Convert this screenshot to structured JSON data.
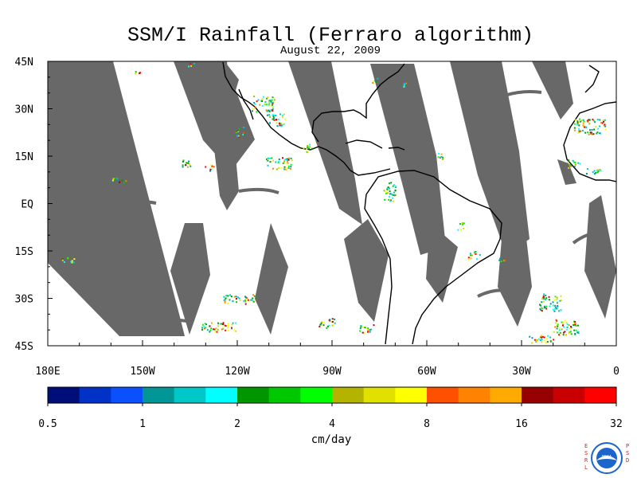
{
  "title": "SSM/I Rainfall (Ferraro algorithm)",
  "subtitle": "August 22, 2009",
  "map": {
    "lat_labels": [
      "45N",
      "30N",
      "15N",
      "EQ",
      "15S",
      "30S",
      "45S"
    ],
    "lat_values": [
      45,
      30,
      15,
      0,
      -15,
      -30,
      -45
    ],
    "lon_labels": [
      "180E",
      "150W",
      "120W",
      "90W",
      "60W",
      "30W",
      "0"
    ],
    "lon_values": [
      -180,
      -150,
      -120,
      -90,
      -60,
      -30,
      0
    ],
    "lon_range": [
      -180,
      0
    ],
    "lat_range": [
      -45,
      45
    ],
    "no_data_color": "#686868",
    "coast_color": "#000000"
  },
  "colorbar": {
    "colors": [
      "#000e7a",
      "#0032c8",
      "#0a50ff",
      "#009696",
      "#00c8c8",
      "#00ffff",
      "#009600",
      "#00c800",
      "#00ff00",
      "#b4b400",
      "#e1e100",
      "#ffff00",
      "#ff5000",
      "#ff8200",
      "#ffaa00",
      "#960000",
      "#c80000",
      "#ff0000"
    ],
    "tick_labels": [
      "0.5",
      "1",
      "2",
      "4",
      "8",
      "16",
      "32"
    ],
    "unit": "cm/day"
  },
  "logo": {
    "left_letters": [
      "E",
      "S",
      "R",
      "L"
    ],
    "right_letters": [
      "P",
      "S",
      "D"
    ],
    "badge": "NOAA"
  }
}
